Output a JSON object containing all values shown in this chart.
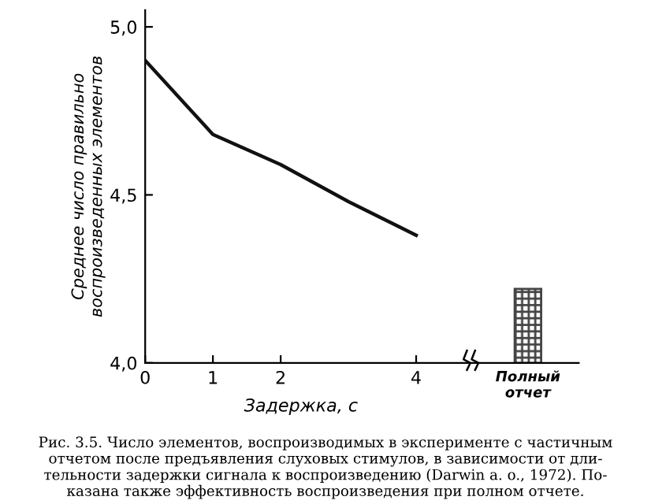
{
  "chart_data": {
    "type": "line",
    "xlabel": "Задержка, с",
    "ylabel": "Среднее число правильно\nвоспроизведенных элементов",
    "series": [
      {
        "color": "#111111",
        "x": [
          0,
          1,
          2,
          3,
          4
        ],
        "values": [
          4.9,
          4.68,
          4.59,
          4.48,
          4.38
        ]
      },
      {
        "type": "bar",
        "color": "#444444",
        "x": [
          5.65
        ],
        "values": [
          4.22
        ]
      }
    ],
    "xlim": [
      0,
      6.4
    ],
    "xticks": [
      0,
      1,
      2,
      4,
      {
        "value": 5.65,
        "label": "Полный\nотчет"
      }
    ],
    "ylim": [
      4.0,
      5.05
    ],
    "yticks": [
      {
        "value": 4.0,
        "label": "4,0"
      },
      {
        "value": 4.5,
        "label": "4,5"
      },
      {
        "value": 5.0,
        "label": "5,0"
      }
    ],
    "grid": false,
    "legend": false,
    "marker": "none",
    "line_style": "solid",
    "annotations": [
      "Рис. 3.5. Число элементов, воспроизводимых в эксперименте с частичным\nотчетом после предъявления слуховых стимулов, в зависимости от дли-\nтельности задержки сигнала к воспроизведению (Darwin a. o., 1972). По-\nказана также эффективность воспроизведения при полном отчете."
    ]
  }
}
